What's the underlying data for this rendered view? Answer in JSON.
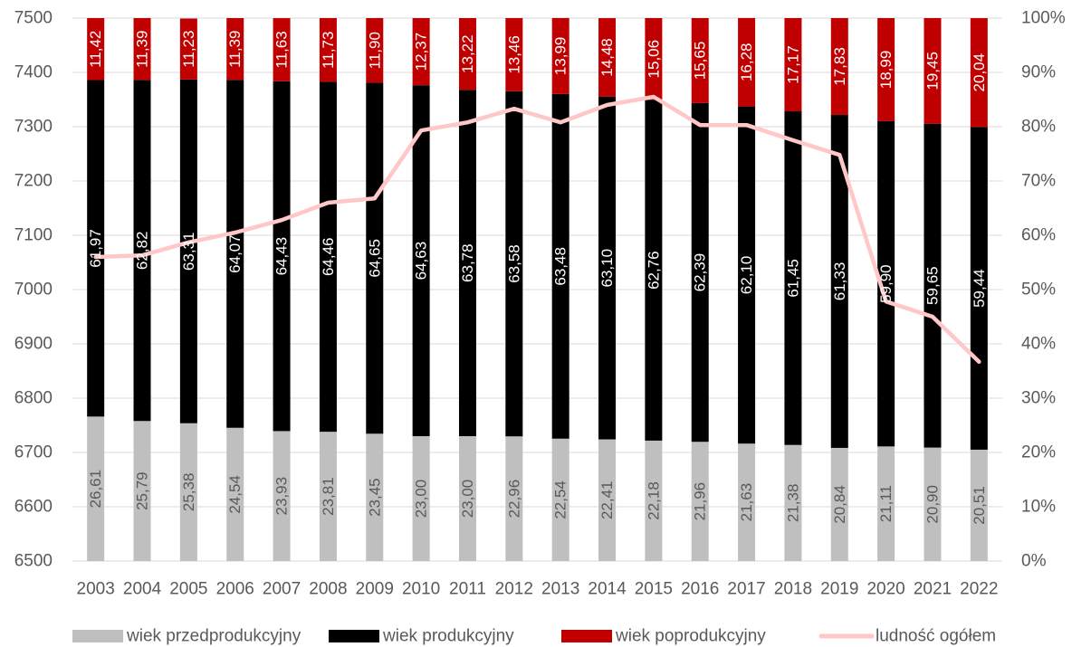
{
  "chart_data": {
    "type": "bar",
    "stacked": true,
    "percent_stacked": true,
    "categories": [
      "2003",
      "2004",
      "2005",
      "2006",
      "2007",
      "2008",
      "2009",
      "2010",
      "2011",
      "2012",
      "2013",
      "2014",
      "2015",
      "2016",
      "2017",
      "2018",
      "2019",
      "2020",
      "2021",
      "2022"
    ],
    "series": [
      {
        "name": "wiek przedprodukcyjny",
        "axis": "right",
        "color": "#bfbfbf",
        "label_color": "#595959",
        "values": [
          26.61,
          25.79,
          25.38,
          24.54,
          23.93,
          23.81,
          23.45,
          23.0,
          23.0,
          22.96,
          22.54,
          22.41,
          22.18,
          21.96,
          21.63,
          21.38,
          20.84,
          21.11,
          20.9,
          20.51
        ],
        "labels": [
          "26,61",
          "25,79",
          "25,38",
          "24,54",
          "23,93",
          "23,81",
          "23,45",
          "23,00",
          "23,00",
          "22,96",
          "22,54",
          "22,41",
          "22,18",
          "21,96",
          "21,63",
          "21,38",
          "20,84",
          "21,11",
          "20,90",
          "20,51"
        ]
      },
      {
        "name": "wiek produkcyjny",
        "axis": "right",
        "color": "#000000",
        "label_color": "#ffffff",
        "values": [
          61.97,
          62.82,
          63.31,
          64.07,
          64.43,
          64.46,
          64.65,
          64.63,
          63.78,
          63.58,
          63.48,
          63.1,
          62.76,
          62.39,
          62.1,
          61.45,
          61.33,
          59.9,
          59.65,
          59.44
        ],
        "labels": [
          "61,97",
          "62,82",
          "63,31",
          "64,07",
          "64,43",
          "64,46",
          "64,65",
          "64,63",
          "63,78",
          "63,58",
          "63,48",
          "63,10",
          "62,76",
          "62,39",
          "62,10",
          "61,45",
          "61,33",
          "59,90",
          "59,65",
          "59,44"
        ]
      },
      {
        "name": "wiek poprodukcyjny",
        "axis": "right",
        "color": "#c00000",
        "label_color": "#ffffff",
        "values": [
          11.42,
          11.39,
          11.23,
          11.39,
          11.63,
          11.73,
          11.9,
          12.37,
          13.22,
          13.46,
          13.99,
          14.48,
          15.06,
          15.65,
          16.28,
          17.17,
          17.83,
          18.99,
          19.45,
          20.04
        ],
        "labels": [
          "11,42",
          "11,39",
          "11,23",
          "11,39",
          "11,63",
          "11,73",
          "11,90",
          "12,37",
          "13,22",
          "13,46",
          "13,99",
          "14,48",
          "15,06",
          "15,65",
          "16,28",
          "17,17",
          "17,83",
          "18,99",
          "19,45",
          "20,04"
        ]
      },
      {
        "name": "ludność ogółem",
        "type": "line",
        "axis": "left",
        "color": "#ffc7c7",
        "values": [
          7060,
          7063,
          7087,
          7105,
          7128,
          7160,
          7168,
          7293,
          7308,
          7333,
          7308,
          7340,
          7355,
          7303,
          7303,
          7275,
          7248,
          6978,
          6950,
          6867
        ]
      }
    ],
    "y_left": {
      "min": 6500,
      "max": 7500,
      "ticks": [
        "6500",
        "6600",
        "6700",
        "6800",
        "6900",
        "7000",
        "7100",
        "7200",
        "7300",
        "7400",
        "7500"
      ]
    },
    "y_right": {
      "min": 0,
      "max": 100,
      "ticks": [
        "0%",
        "10%",
        "20%",
        "30%",
        "40%",
        "50%",
        "60%",
        "70%",
        "80%",
        "90%",
        "100%"
      ]
    },
    "grid": true,
    "legend": "bottom",
    "title": "",
    "xlabel": "",
    "ylabel": ""
  }
}
